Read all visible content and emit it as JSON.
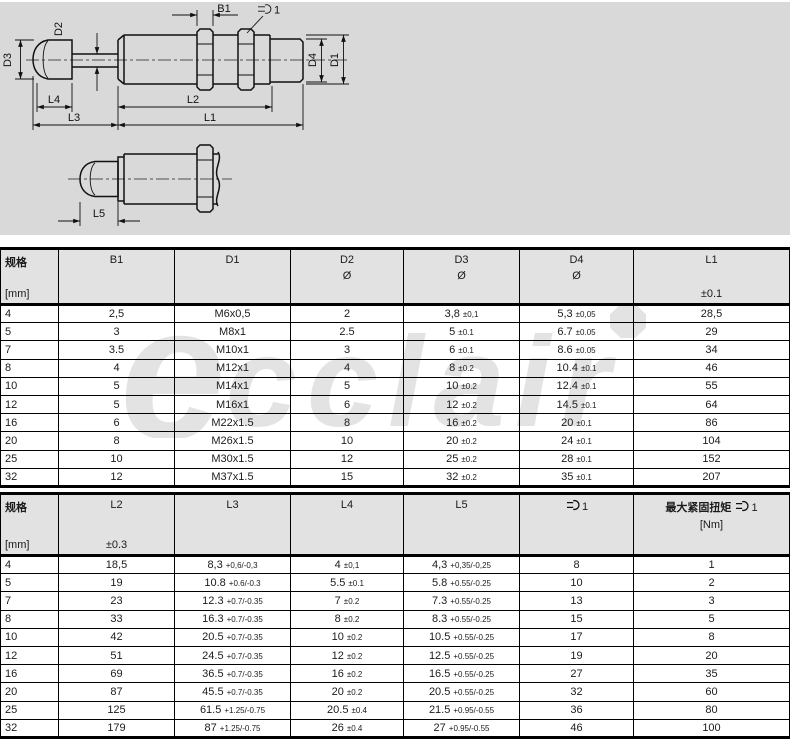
{
  "watermark": {
    "big": "e",
    "rest": "cclair"
  },
  "drawing": {
    "labels": {
      "b1": "B1",
      "wrench_suffix": "1",
      "d1": "D1",
      "d2": "D2",
      "d3": "D3",
      "d4": "D4",
      "l1": "L1",
      "l2": "L2",
      "l3": "L3",
      "l4": "L4",
      "l5": "L5"
    }
  },
  "table1": {
    "headers": [
      {
        "top": "规格",
        "bottom": "[mm]",
        "align": "left",
        "cjk": true
      },
      {
        "top": "B1"
      },
      {
        "top": "D1"
      },
      {
        "top": "D2",
        "mid": "Ø"
      },
      {
        "top": "D3",
        "mid": "Ø"
      },
      {
        "top": "D4",
        "mid": "Ø"
      },
      {
        "top": "L1",
        "bottom": "±0.1"
      }
    ],
    "rows": [
      [
        "4",
        "2,5",
        "M6x0,5",
        "2",
        [
          "3,8",
          "±0,1"
        ],
        [
          "5,3",
          "±0,05"
        ],
        "28,5"
      ],
      [
        "5",
        "3",
        "M8x1",
        "2.5",
        [
          "5",
          "±0.1"
        ],
        [
          "6.7",
          "±0.05"
        ],
        "29"
      ],
      [
        "7",
        "3.5",
        "M10x1",
        "3",
        [
          "6",
          "±0.1"
        ],
        [
          "8.6",
          "±0.05"
        ],
        "34"
      ],
      [
        "8",
        "4",
        "M12x1",
        "4",
        [
          "8",
          "±0.2"
        ],
        [
          "10.4",
          "±0.1"
        ],
        "46"
      ],
      [
        "10",
        "5",
        "M14x1",
        "5",
        [
          "10",
          "±0.2"
        ],
        [
          "12.4",
          "±0.1"
        ],
        "55"
      ],
      [
        "12",
        "5",
        "M16x1",
        "6",
        [
          "12",
          "±0.2"
        ],
        [
          "14.5",
          "±0.1"
        ],
        "64"
      ],
      [
        "16",
        "6",
        "M22x1.5",
        "8",
        [
          "16",
          "±0.2"
        ],
        [
          "20",
          "±0.1"
        ],
        "86"
      ],
      [
        "20",
        "8",
        "M26x1.5",
        "10",
        [
          "20",
          "±0.2"
        ],
        [
          "24",
          "±0.1"
        ],
        "104"
      ],
      [
        "25",
        "10",
        "M30x1.5",
        "12",
        [
          "25",
          "±0.2"
        ],
        [
          "28",
          "±0.1"
        ],
        "152"
      ],
      [
        "32",
        "12",
        "M37x1.5",
        "15",
        [
          "32",
          "±0.2"
        ],
        [
          "35",
          "±0.1"
        ],
        "207"
      ]
    ]
  },
  "table2": {
    "headers": [
      {
        "top": "规格",
        "bottom": "[mm]",
        "align": "left",
        "cjk": true
      },
      {
        "top": "L2",
        "bottom": "±0.3"
      },
      {
        "top": "L3"
      },
      {
        "top": "L4"
      },
      {
        "top": "L5"
      },
      {
        "icon": "wrench",
        "prefix": "",
        "suffix": "1"
      },
      {
        "icon": "wrench",
        "prefix": "最大紧固扭矩 ",
        "suffix": "1",
        "mid": "[Nm]"
      }
    ],
    "rows": [
      [
        "4",
        "18,5",
        [
          "8,3",
          "+0,6/-0,3"
        ],
        [
          "4",
          "±0,1"
        ],
        [
          "4,3",
          "+0,35/-0,25"
        ],
        "8",
        "1"
      ],
      [
        "5",
        "19",
        [
          "10.8",
          "+0.6/-0.3"
        ],
        [
          "5.5",
          "±0.1"
        ],
        [
          "5.8",
          "+0.55/-0.25"
        ],
        "10",
        "2"
      ],
      [
        "7",
        "23",
        [
          "12.3",
          "+0.7/-0.35"
        ],
        [
          "7",
          "±0.2"
        ],
        [
          "7.3",
          "+0.55/-0.25"
        ],
        "13",
        "3"
      ],
      [
        "8",
        "33",
        [
          "16.3",
          "+0.7/-0.35"
        ],
        [
          "8",
          "±0.2"
        ],
        [
          "8.3",
          "+0.55/-0.25"
        ],
        "15",
        "5"
      ],
      [
        "10",
        "42",
        [
          "20.5",
          "+0.7/-0.35"
        ],
        [
          "10",
          "±0.2"
        ],
        [
          "10.5",
          "+0.55/-0.25"
        ],
        "17",
        "8"
      ],
      [
        "12",
        "51",
        [
          "24.5",
          "+0.7/-0.35"
        ],
        [
          "12",
          "±0.2"
        ],
        [
          "12.5",
          "+0.55/-0.25"
        ],
        "19",
        "20"
      ],
      [
        "16",
        "69",
        [
          "36.5",
          "+0.7/-0.35"
        ],
        [
          "16",
          "±0.2"
        ],
        [
          "16.5",
          "+0.55/-0.25"
        ],
        "27",
        "35"
      ],
      [
        "20",
        "87",
        [
          "45.5",
          "+0.7/-0.35"
        ],
        [
          "20",
          "±0.2"
        ],
        [
          "20.5",
          "+0.55/-0.25"
        ],
        "32",
        "60"
      ],
      [
        "25",
        "125",
        [
          "61.5",
          "+1.25/-0.75"
        ],
        [
          "20.5",
          "±0.4"
        ],
        [
          "21.5",
          "+0.95/-0.55"
        ],
        "36",
        "80"
      ],
      [
        "32",
        "179",
        [
          "87",
          "+1.25/-0.75"
        ],
        [
          "26",
          "±0.4"
        ],
        [
          "27",
          "+0.95/-0.55"
        ],
        "46",
        "100"
      ]
    ]
  }
}
